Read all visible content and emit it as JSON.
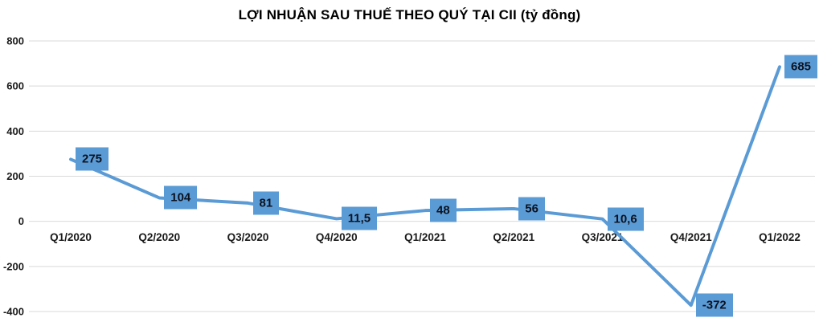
{
  "chart_data": {
    "type": "line",
    "title": "LỢI NHUẬN SAU THUẾ THEO QUÝ TẠI CII (tỷ đồng)",
    "categories": [
      "Q1/2020",
      "Q2/2020",
      "Q3/2020",
      "Q4/2020",
      "Q1/2021",
      "Q2/2021",
      "Q3/2021",
      "Q4/2021",
      "Q1/2022"
    ],
    "values": [
      275,
      104,
      81,
      11.5,
      48,
      56,
      10.6,
      -372,
      685
    ],
    "point_labels": [
      "275",
      "104",
      "81",
      "11,5",
      "48",
      "56",
      "10,6",
      "-372",
      "685"
    ],
    "yticks": [
      800,
      600,
      400,
      200,
      0,
      -200,
      -400
    ],
    "ylim": [
      -400,
      800
    ],
    "xlabel": "",
    "ylabel": "",
    "grid": true,
    "legend": "none",
    "colors": {
      "line": "#5B9BD5",
      "label_bg": "#5B9BD5",
      "label_text": "#0b1220",
      "grid": "#D9D9D9",
      "axis_text": "#1a1a1a",
      "title_text": "#000000",
      "background": "#FFFFFF"
    }
  }
}
